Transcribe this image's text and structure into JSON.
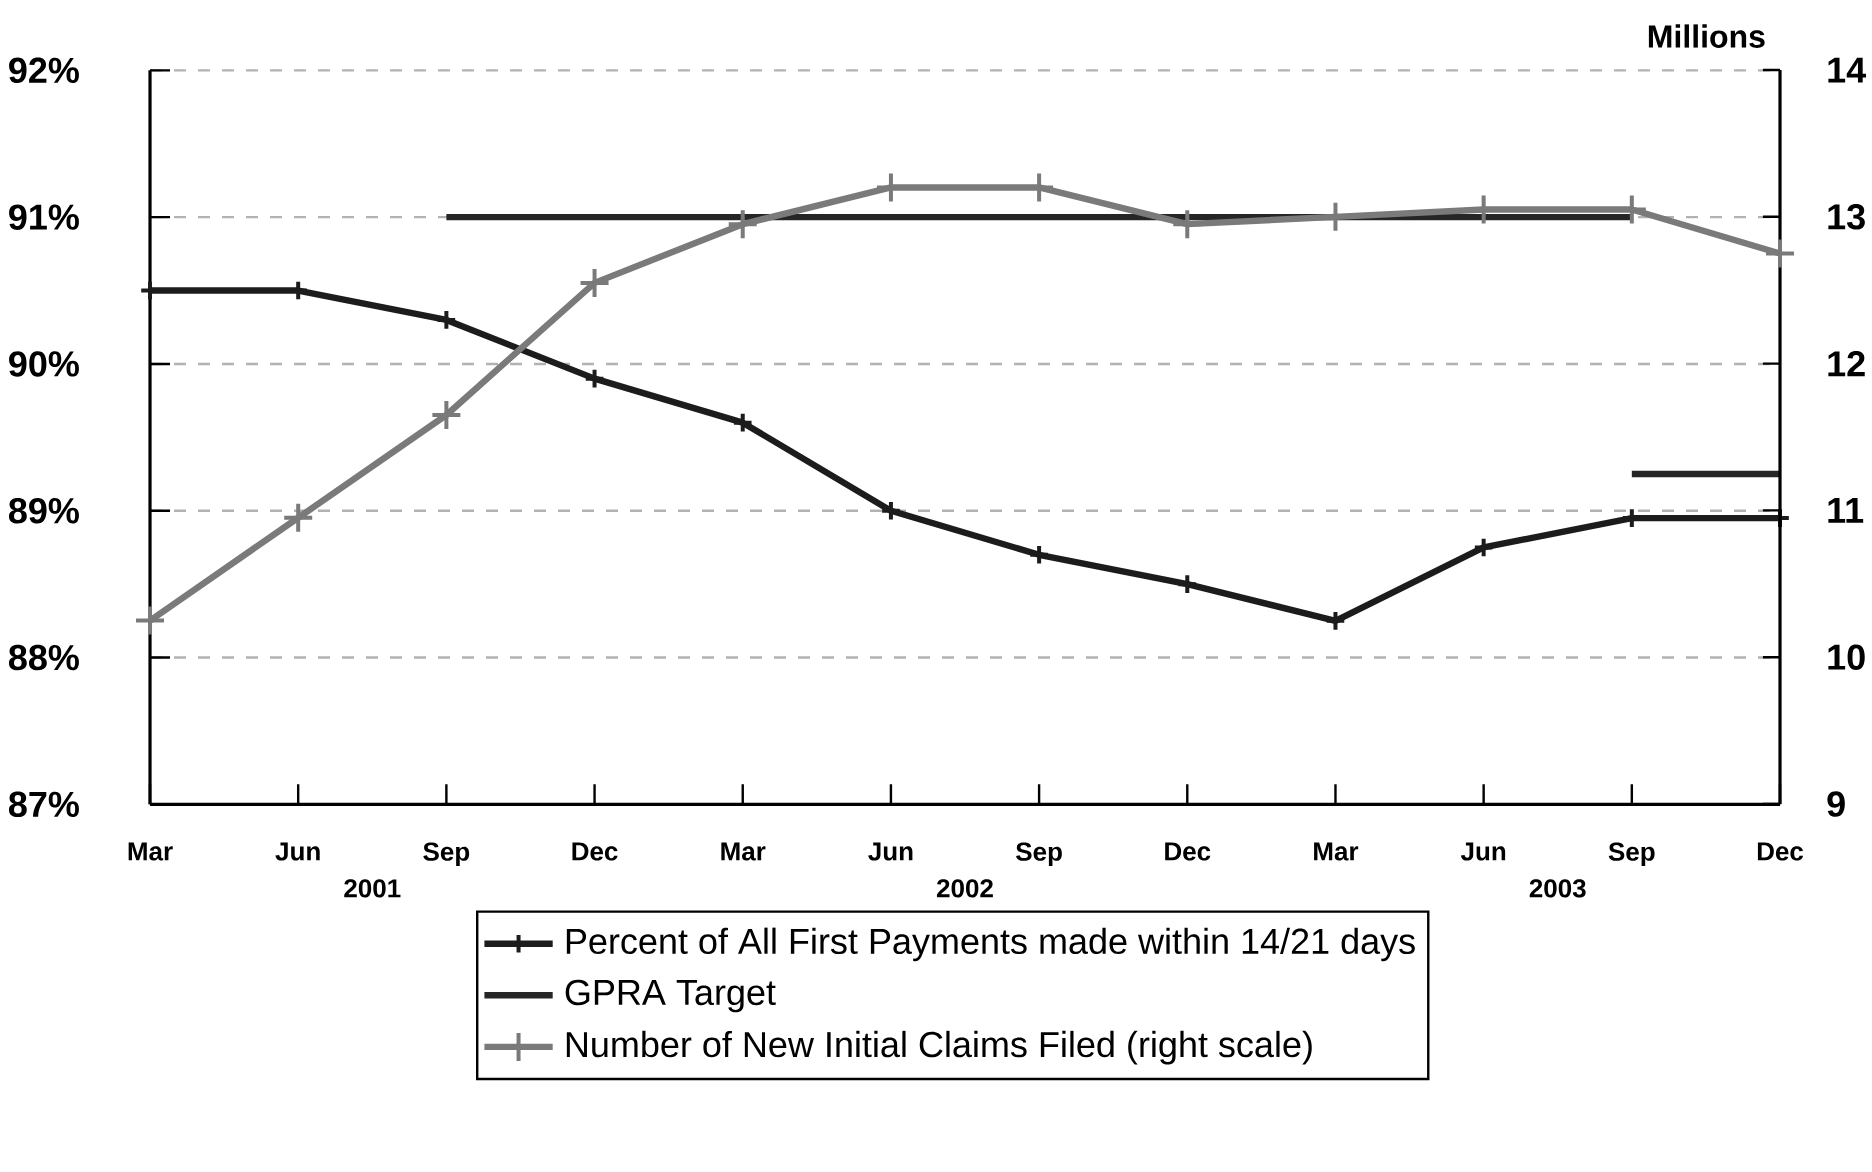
{
  "chart_data": {
    "type": "line",
    "categories": [
      "Mar",
      "Jun",
      "Sep",
      "Dec",
      "Mar",
      "Jun",
      "Sep",
      "Dec",
      "Mar",
      "Jun",
      "Sep",
      "Dec"
    ],
    "annotations": [
      "2001",
      "2002",
      "2003"
    ],
    "y2label": "Millions",
    "ylim": [
      87,
      92
    ],
    "yticks": [
      {
        "value": 87,
        "label": "87%"
      },
      {
        "value": 88,
        "label": "88%"
      },
      {
        "value": 89,
        "label": "89%"
      },
      {
        "value": 90,
        "label": "90%"
      },
      {
        "value": 91,
        "label": "91%"
      },
      {
        "value": 92,
        "label": "92%"
      }
    ],
    "y2lim": [
      9,
      14
    ],
    "y2ticks": [
      9,
      10,
      11,
      12,
      13,
      14
    ],
    "grid": "y",
    "legend": "bottom",
    "line_style": "solid",
    "series": [
      {
        "name": "Percent of All First Payments made within 14/21 days",
        "color": "#1c1c1c",
        "marker": "cross",
        "values": [
          90.5,
          90.5,
          90.3,
          89.9,
          89.6,
          89.0,
          88.7,
          88.5,
          88.25,
          88.75,
          88.95,
          88.95
        ]
      },
      {
        "name": "GPRA Target",
        "color": "#262626",
        "marker": "none",
        "values": [
          null,
          null,
          91,
          91,
          91,
          91,
          91,
          91,
          91,
          91,
          91,
          null
        ]
      },
      {
        "color": "#262626",
        "marker": "none",
        "values": [
          null,
          null,
          null,
          null,
          null,
          null,
          null,
          null,
          null,
          null,
          89.25,
          89.25
        ]
      },
      {
        "name": "Number of New Initial Claims Filed (right scale)",
        "color": "#7a7a7a",
        "marker": "cross",
        "axis": "y2",
        "values": [
          10.25,
          10.95,
          11.65,
          12.55,
          12.95,
          13.2,
          13.2,
          12.95,
          13.0,
          13.05,
          13.05,
          12.75
        ]
      }
    ]
  }
}
